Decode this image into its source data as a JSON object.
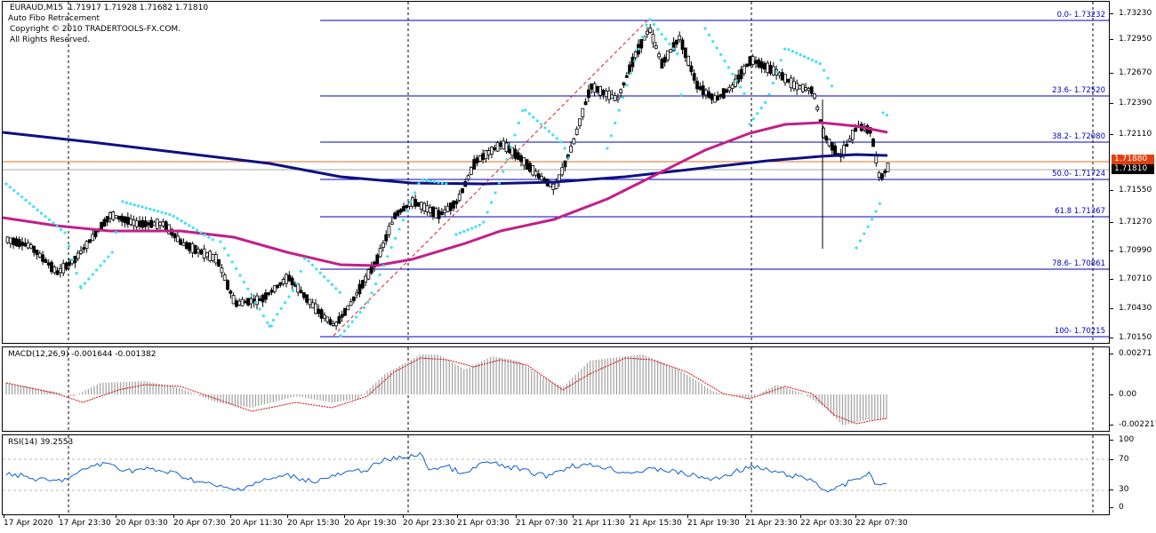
{
  "main": {
    "symbol_line": "EURAUD,M15  1.71917 1.71928 1.71682 1.71810",
    "indicator_name": "Auto Fibo Retracement",
    "copyright": "Copyright © 2010 TRADERTOOLS-FX.COM.",
    "rights": "All Rights Reserved.",
    "price_ticks": [
      "1.73230",
      "1.72950",
      "1.72670",
      "1.72390",
      "1.72110",
      "1.71550",
      "1.71270",
      "1.70990",
      "1.70710",
      "1.70430",
      "1.70150"
    ],
    "bid_tag": "1.71810",
    "ask_tag": "1.71880",
    "fibo_levels": [
      {
        "label": "0.0- 1.73232"
      },
      {
        "label": "23.6- 1.72520"
      },
      {
        "label": "38.2- 1.72080"
      },
      {
        "label": "50.0- 1.71724"
      },
      {
        "label": "61.8 1.71367"
      },
      {
        "label": "78.6- 1.70861"
      },
      {
        "label": "100- 1.70215"
      }
    ]
  },
  "macd": {
    "title": "MACD(12,26,9) -0.001644 -0.001382",
    "ticks": [
      "0.00271",
      "0.00",
      "-0.002217"
    ]
  },
  "rsi": {
    "title": "RSI(14) 39.2553",
    "ticks": [
      "100",
      "70",
      "30",
      "0"
    ]
  },
  "time_axis": [
    "17 Apr 2020",
    "17 Apr 23:30",
    "20 Apr 03:30",
    "20 Apr 07:30",
    "20 Apr 11:30",
    "20 Apr 15:30",
    "20 Apr 19:30",
    "20 Apr 23:30",
    "21 Apr 03:30",
    "21 Apr 07:30",
    "21 Apr 11:30",
    "21 Apr 15:30",
    "21 Apr 19:30",
    "21 Apr 23:30",
    "22 Apr 03:30",
    "22 Apr 07:30"
  ],
  "colors": {
    "fibo": "#0000c0",
    "ma_slow": "#101080",
    "ma_fast": "#c0208a",
    "parabolic_sar": "#40e0f0",
    "ask_line": "#e07020",
    "bid_tag_bg": "#000000",
    "ask_tag_bg": "#e04010",
    "macd_signal": "#d01010",
    "rsi_line": "#1060d0"
  }
}
